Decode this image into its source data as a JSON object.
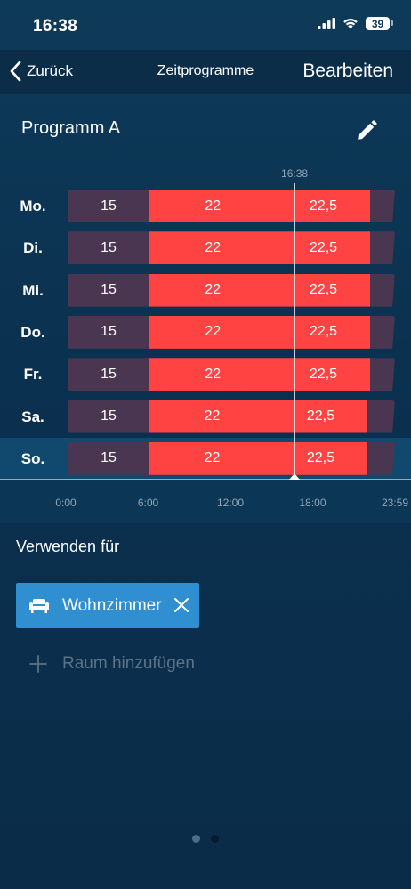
{
  "status_bar": {
    "time": "16:38",
    "battery": "39"
  },
  "nav": {
    "back_label": "Zurück",
    "title": "Zeitprogramme",
    "edit_label": "Bearbeiten"
  },
  "program": {
    "name": "Programm A"
  },
  "schedule": {
    "current_time": "16:38",
    "current_hour": 16.633,
    "axis_ticks": [
      "0:00",
      "6:00",
      "12:00",
      "18:00",
      "23:59"
    ],
    "days": [
      {
        "label": "Mo.",
        "selected": false,
        "segments": [
          {
            "start": 0,
            "end": 6,
            "value": "15",
            "level": "low"
          },
          {
            "start": 6,
            "end": 15.3,
            "value": "22",
            "level": "mid"
          },
          {
            "start": 15.3,
            "end": 22.2,
            "value": "22,5",
            "level": "high"
          },
          {
            "start": 22.2,
            "end": 24,
            "value": "",
            "level": "tail"
          }
        ]
      },
      {
        "label": "Di.",
        "selected": false,
        "segments": [
          {
            "start": 0,
            "end": 6,
            "value": "15",
            "level": "low"
          },
          {
            "start": 6,
            "end": 15.3,
            "value": "22",
            "level": "mid"
          },
          {
            "start": 15.3,
            "end": 22.2,
            "value": "22,5",
            "level": "high"
          },
          {
            "start": 22.2,
            "end": 24,
            "value": "",
            "level": "tail"
          }
        ]
      },
      {
        "label": "Mi.",
        "selected": false,
        "segments": [
          {
            "start": 0,
            "end": 6,
            "value": "15",
            "level": "low"
          },
          {
            "start": 6,
            "end": 15.3,
            "value": "22",
            "level": "mid"
          },
          {
            "start": 15.3,
            "end": 22.2,
            "value": "22,5",
            "level": "high"
          },
          {
            "start": 22.2,
            "end": 24,
            "value": "",
            "level": "tail"
          }
        ]
      },
      {
        "label": "Do.",
        "selected": false,
        "segments": [
          {
            "start": 0,
            "end": 6,
            "value": "15",
            "level": "low"
          },
          {
            "start": 6,
            "end": 15.3,
            "value": "22",
            "level": "mid"
          },
          {
            "start": 15.3,
            "end": 22.2,
            "value": "22,5",
            "level": "high"
          },
          {
            "start": 22.2,
            "end": 24,
            "value": "",
            "level": "tail"
          }
        ]
      },
      {
        "label": "Fr.",
        "selected": false,
        "segments": [
          {
            "start": 0,
            "end": 6,
            "value": "15",
            "level": "low"
          },
          {
            "start": 6,
            "end": 15.3,
            "value": "22",
            "level": "mid"
          },
          {
            "start": 15.3,
            "end": 22.2,
            "value": "22,5",
            "level": "high"
          },
          {
            "start": 22.2,
            "end": 24,
            "value": "",
            "level": "tail"
          }
        ]
      },
      {
        "label": "Sa.",
        "selected": false,
        "segments": [
          {
            "start": 0,
            "end": 6,
            "value": "15",
            "level": "low"
          },
          {
            "start": 6,
            "end": 15.2,
            "value": "22",
            "level": "mid"
          },
          {
            "start": 15.2,
            "end": 21.9,
            "value": "22,5",
            "level": "high"
          },
          {
            "start": 21.9,
            "end": 24,
            "value": "",
            "level": "tail"
          }
        ]
      },
      {
        "label": "So.",
        "selected": true,
        "segments": [
          {
            "start": 0,
            "end": 6,
            "value": "15",
            "level": "low"
          },
          {
            "start": 6,
            "end": 15.2,
            "value": "22",
            "level": "mid"
          },
          {
            "start": 15.2,
            "end": 21.9,
            "value": "22,5",
            "level": "high"
          },
          {
            "start": 21.9,
            "end": 24,
            "value": "",
            "level": "tail"
          }
        ]
      }
    ]
  },
  "usage": {
    "title": "Verwenden für",
    "room": {
      "name": "Wohnzimmer",
      "icon": "sofa-icon"
    },
    "add_room_label": "Raum hinzufügen"
  },
  "pagination": {
    "pages": 2,
    "current": 2
  },
  "colors": {
    "low": "#4a3650",
    "comfort": "#ff4343",
    "chip": "#2f8fd0",
    "selected_row": "#11486e"
  }
}
